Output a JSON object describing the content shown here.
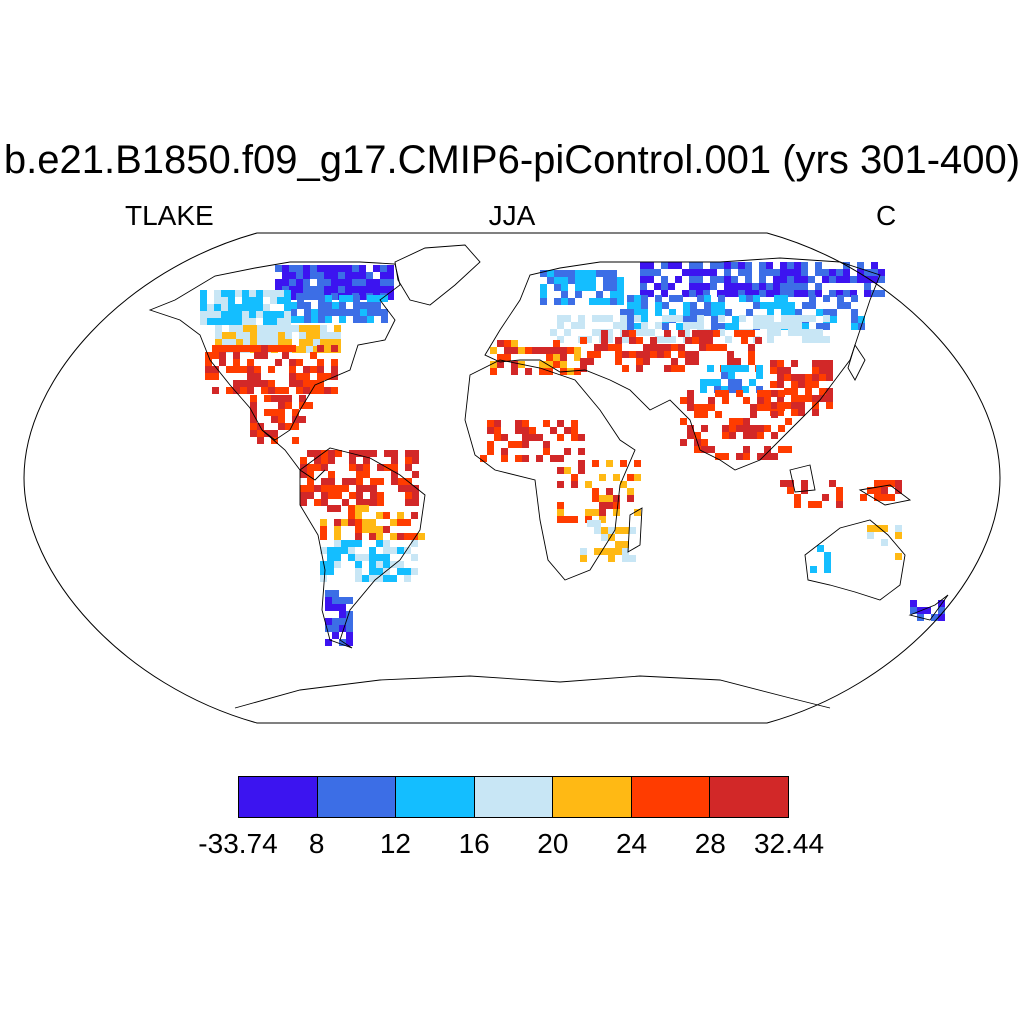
{
  "title": "b.e21.B1850.f09_g17.CMIP6-piControl.001 (yrs 301-400)",
  "left_label": "TLAKE",
  "center_label": "JJA",
  "right_label": "C",
  "colorbar": {
    "labels": [
      "-33.74",
      "8",
      "12",
      "16",
      "20",
      "24",
      "28",
      "32.44"
    ],
    "colors": [
      "#3c14f0",
      "#3c6ee6",
      "#14beff",
      "#c8e6f5",
      "#ffb914",
      "#ff3c00",
      "#d22828"
    ]
  },
  "colors": {
    "coast": "#000000",
    "background": "#ffffff"
  }
}
